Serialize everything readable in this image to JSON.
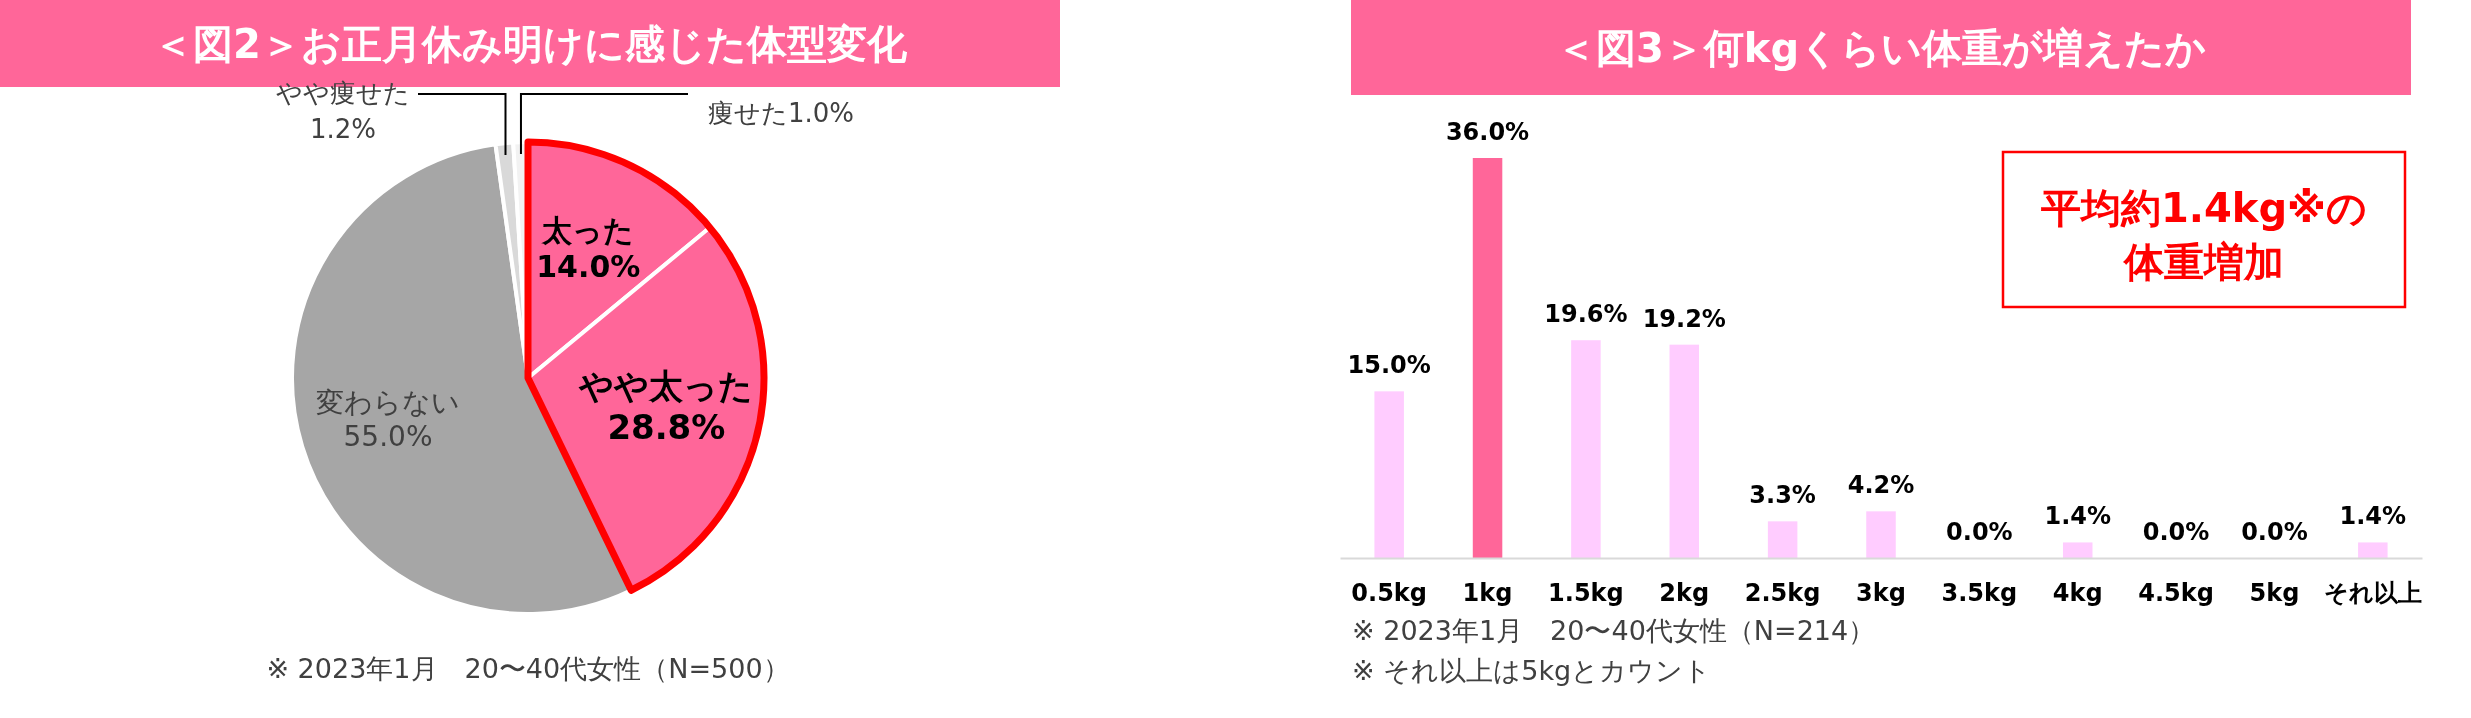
{
  "chart_data": [
    {
      "type": "pie",
      "title": "＜図2＞お正月休み明けに感じた体型変化",
      "categories": [
        "太った",
        "やや太った",
        "変わらない",
        "やや痩せた",
        "痩せた"
      ],
      "values": [
        14.0,
        28.8,
        55.0,
        1.2,
        1.0
      ],
      "value_labels": [
        "14.0%",
        "28.8%",
        "55.0%",
        "1.2%",
        "1.0%"
      ],
      "colors": [
        "#ff6699",
        "#ff6699",
        "#a6a6a6",
        "#d9d9d9",
        "#f2f2f2"
      ],
      "annotations": [
        "※ 2023年1月　20〜40代女性（N=500）"
      ]
    },
    {
      "type": "bar",
      "title": "＜図3＞何kgくらい体重が増えたか",
      "categories": [
        "0.5kg",
        "1kg",
        "1.5kg",
        "2kg",
        "2.5kg",
        "3kg",
        "3.5kg",
        "4kg",
        "4.5kg",
        "5kg",
        "それ以上"
      ],
      "values": [
        15.0,
        36.0,
        19.6,
        19.2,
        3.3,
        4.2,
        0.0,
        1.4,
        0.0,
        0.0,
        1.4
      ],
      "colors": [
        "#ffccff",
        "#ff6699",
        "#ffccff",
        "#ffccff",
        "#ffccff",
        "#ffccff",
        "#ffccff",
        "#ffccff",
        "#ffccff",
        "#ffccff",
        "#ffccff"
      ],
      "value_labels": [
        "15.0%",
        "36.0%",
        "19.6%",
        "19.2%",
        "3.3%",
        "4.2%",
        "0.0%",
        "1.4%",
        "0.0%",
        "0.0%",
        "1.4%"
      ],
      "annotations": [
        "平均約1.4kg※の",
        "体重増加",
        "※ 2023年1月　20〜40代女性（N=214）",
        "※ それ以上は5kgとカウント"
      ]
    }
  ]
}
